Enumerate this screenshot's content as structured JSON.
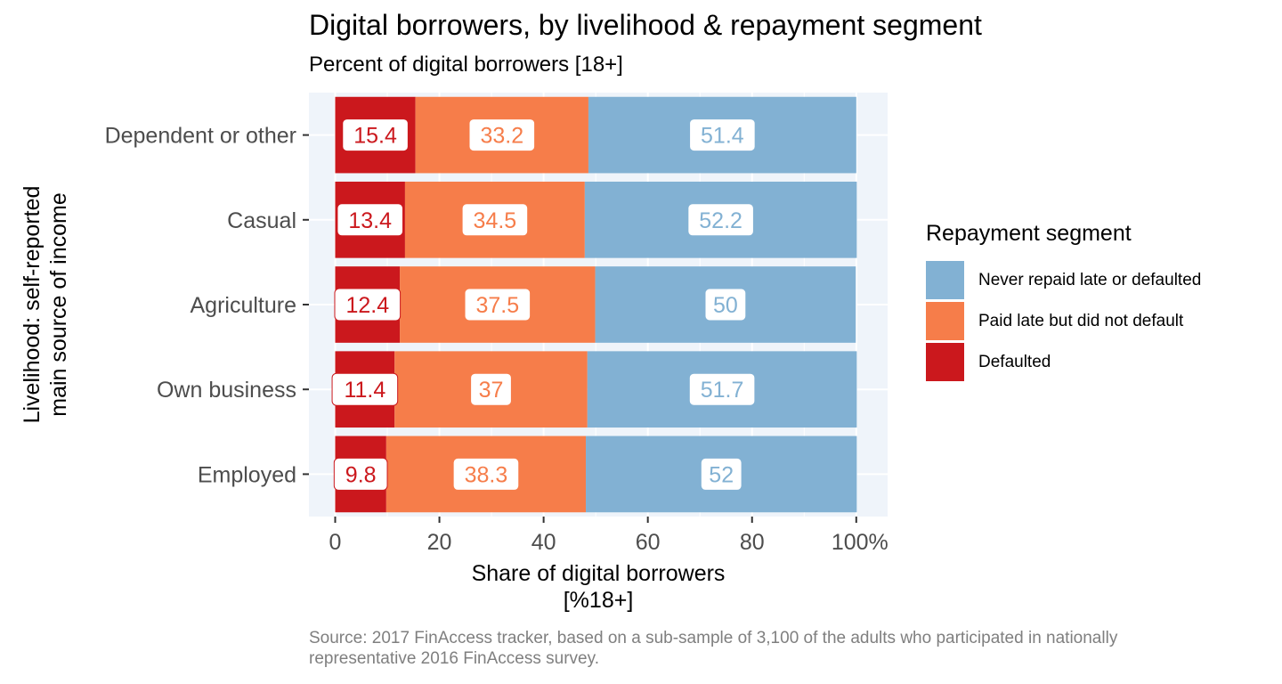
{
  "chart_data": {
    "type": "bar",
    "orientation": "horizontal",
    "stacked": true,
    "title": "Digital borrowers, by livelihood & repayment segment",
    "subtitle": "Percent of digital borrowers [18+]",
    "xlabel": "Share of digital borrowers\n[%18+]",
    "ylabel": "Livelihood: self-reported\nmain source of income",
    "caption": "Source: 2017 FinAccess tracker, based on a sub-sample of 3,100 of the adults who participated in nationally representative 2016 FinAccess survey.",
    "xlim": [
      0,
      100
    ],
    "xticks": [
      "0",
      "20",
      "40",
      "60",
      "80",
      "100%"
    ],
    "categories": [
      "Dependent or other",
      "Casual",
      "Agriculture",
      "Own business",
      "Employed"
    ],
    "series": [
      {
        "name": "Defaulted",
        "color": "#CB181D",
        "values": [
          15.4,
          13.4,
          12.4,
          11.4,
          9.8
        ],
        "labels": [
          "15.4",
          "13.4",
          "12.4",
          "11.4",
          "9.8"
        ]
      },
      {
        "name": "Paid late but did not default",
        "color": "#F67D4A",
        "values": [
          33.2,
          34.5,
          37.5,
          37,
          38.3
        ],
        "labels": [
          "33.2",
          "34.5",
          "37.5",
          "37",
          "38.3"
        ]
      },
      {
        "name": "Never repaid late or defaulted",
        "color": "#82B1D3",
        "values": [
          51.4,
          52.2,
          50,
          51.7,
          52
        ],
        "labels": [
          "51.4",
          "52.2",
          "50",
          "51.7",
          "52"
        ]
      }
    ],
    "legend": {
      "title": "Repayment segment",
      "position": "right",
      "items": [
        {
          "label": "Never repaid late or defaulted",
          "color": "#82B1D3"
        },
        {
          "label": "Paid late but did not default",
          "color": "#F67D4A"
        },
        {
          "label": "Defaulted",
          "color": "#CB181D"
        }
      ]
    },
    "panel_background": "#EFF4FA",
    "grid": true
  }
}
